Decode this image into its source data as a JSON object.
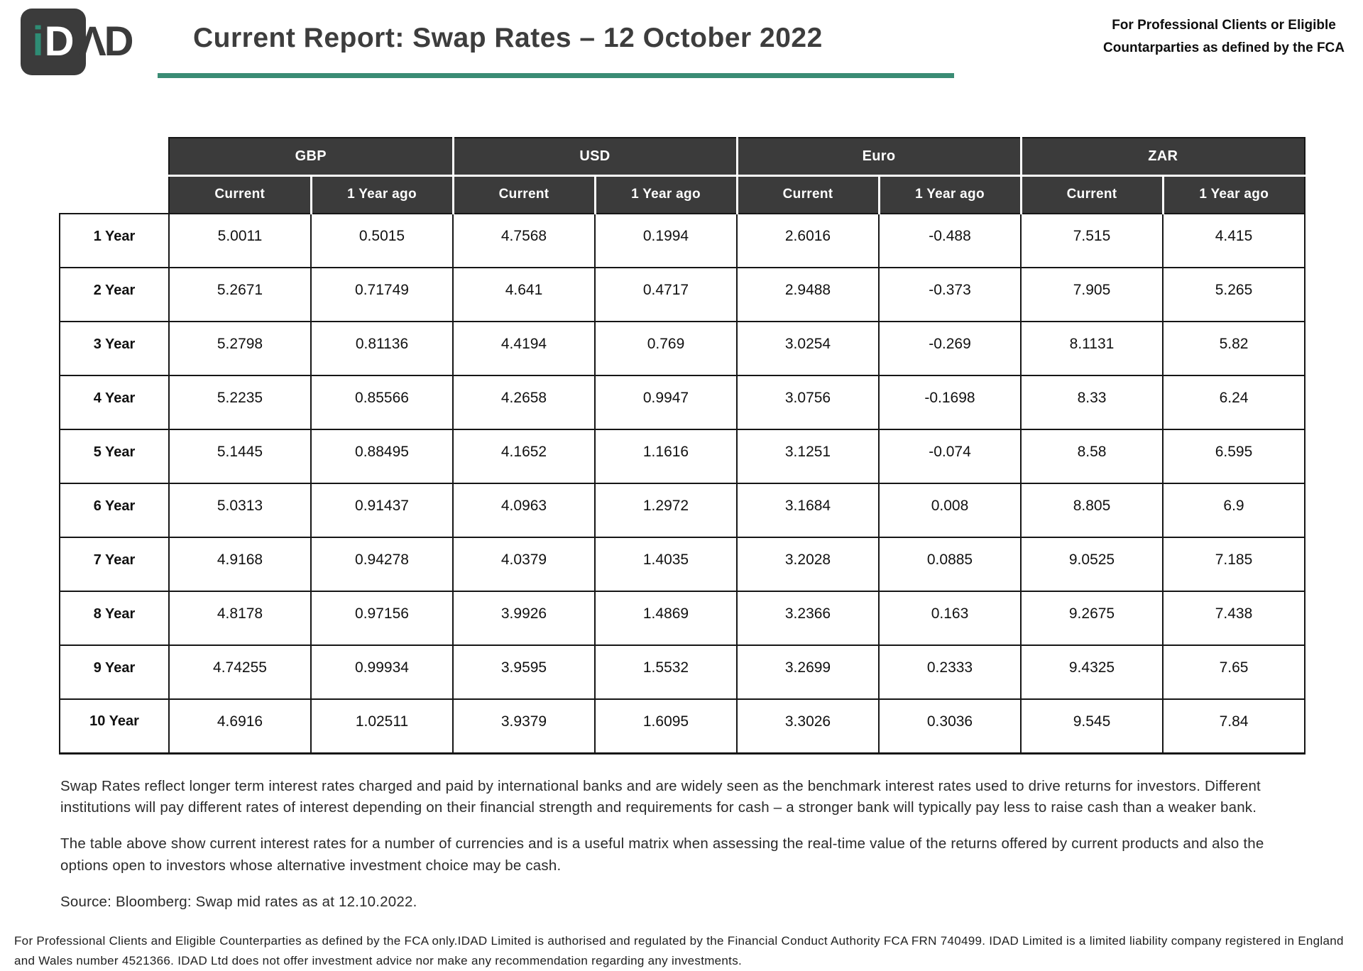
{
  "header": {
    "logo": {
      "tile_text_i": "i",
      "tile_text_d": "D",
      "suffix_text": "ΛD"
    },
    "title": "Current Report: Swap Rates – 12 October 2022",
    "eligibility_line1": "For Professional Clients or Eligible",
    "eligibility_line2": "Countarparties as defined by the FCA"
  },
  "table": {
    "currency_groups": [
      "GBP",
      "USD",
      "Euro",
      "ZAR"
    ],
    "sub_headers": [
      "Current",
      "1 Year ago"
    ],
    "rows": [
      {
        "label": "1 Year",
        "values": [
          "5.0011",
          "0.5015",
          "4.7568",
          "0.1994",
          "2.6016",
          "-0.488",
          "7.515",
          "4.415"
        ]
      },
      {
        "label": "2 Year",
        "values": [
          "5.2671",
          "0.71749",
          "4.641",
          "0.4717",
          "2.9488",
          "-0.373",
          "7.905",
          "5.265"
        ]
      },
      {
        "label": "3 Year",
        "values": [
          "5.2798",
          "0.81136",
          "4.4194",
          "0.769",
          "3.0254",
          "-0.269",
          "8.1131",
          "5.82"
        ]
      },
      {
        "label": "4 Year",
        "values": [
          "5.2235",
          "0.85566",
          "4.2658",
          "0.9947",
          "3.0756",
          "-0.1698",
          "8.33",
          "6.24"
        ]
      },
      {
        "label": "5 Year",
        "values": [
          "5.1445",
          "0.88495",
          "4.1652",
          "1.1616",
          "3.1251",
          "-0.074",
          "8.58",
          "6.595"
        ]
      },
      {
        "label": "6 Year",
        "values": [
          "5.0313",
          "0.91437",
          "4.0963",
          "1.2972",
          "3.1684",
          "0.008",
          "8.805",
          "6.9"
        ]
      },
      {
        "label": "7 Year",
        "values": [
          "4.9168",
          "0.94278",
          "4.0379",
          "1.4035",
          "3.2028",
          "0.0885",
          "9.0525",
          "7.185"
        ]
      },
      {
        "label": "8 Year",
        "values": [
          "4.8178",
          "0.97156",
          "3.9926",
          "1.4869",
          "3.2366",
          "0.163",
          "9.2675",
          "7.438"
        ]
      },
      {
        "label": "9 Year",
        "values": [
          "4.74255",
          "0.99934",
          "3.9595",
          "1.5532",
          "3.2699",
          "0.2333",
          "9.4325",
          "7.65"
        ]
      },
      {
        "label": "10 Year",
        "values": [
          "4.6916",
          "1.02511",
          "3.9379",
          "1.6095",
          "3.3026",
          "0.3036",
          "9.545",
          "7.84"
        ]
      }
    ]
  },
  "notes": {
    "paragraph1": "Swap Rates reflect longer term interest rates charged and paid by international banks and are widely seen as the benchmark interest rates used to drive returns for investors. Different institutions will pay different rates of interest depending on their financial strength and requirements for cash – a stronger bank will typically pay less to raise cash than a weaker bank.",
    "paragraph2": "The table above show current interest rates for a number of currencies and is a useful matrix when assessing the real-time value of the returns offered by current products and also the options open to investors whose alternative investment choice may be cash.",
    "source": "Source: Bloomberg: Swap mid rates as at 12.10.2022."
  },
  "footer": {
    "legal": "For Professional Clients and Eligible Counterparties as defined by the FCA only.IDAD Limited is authorised and regulated by the Financial Conduct Authority FCA FRN 740499. IDAD Limited is a limited liability company registered in England and Wales number 4521366. IDAD Ltd does not offer investment advice nor make any recommendation regarding any investments."
  },
  "colors": {
    "accent_green": "#3a8c74",
    "logo_teal": "#2e8c74",
    "header_dark": "#3b3b3b",
    "border_black": "#161616"
  }
}
